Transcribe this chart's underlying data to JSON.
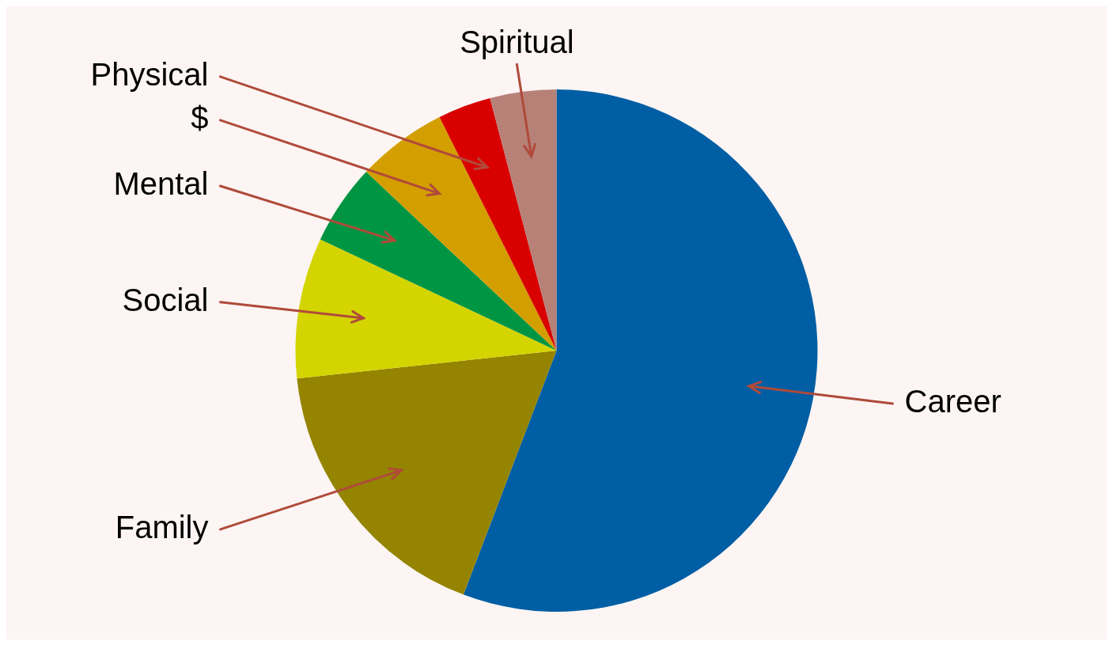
{
  "chart_data": {
    "type": "pie",
    "categories": [
      "Career",
      "Family",
      "Social",
      "Mental",
      "$",
      "Physical",
      "Spiritual"
    ],
    "values": [
      55.8,
      17.5,
      8.7,
      5,
      5.6,
      3.3,
      4.1
    ],
    "colors": [
      "#005ea4",
      "#948400",
      "#d4d400",
      "#009543",
      "#d39f00",
      "#d90000",
      "#b78178"
    ],
    "legend": false
  }
}
